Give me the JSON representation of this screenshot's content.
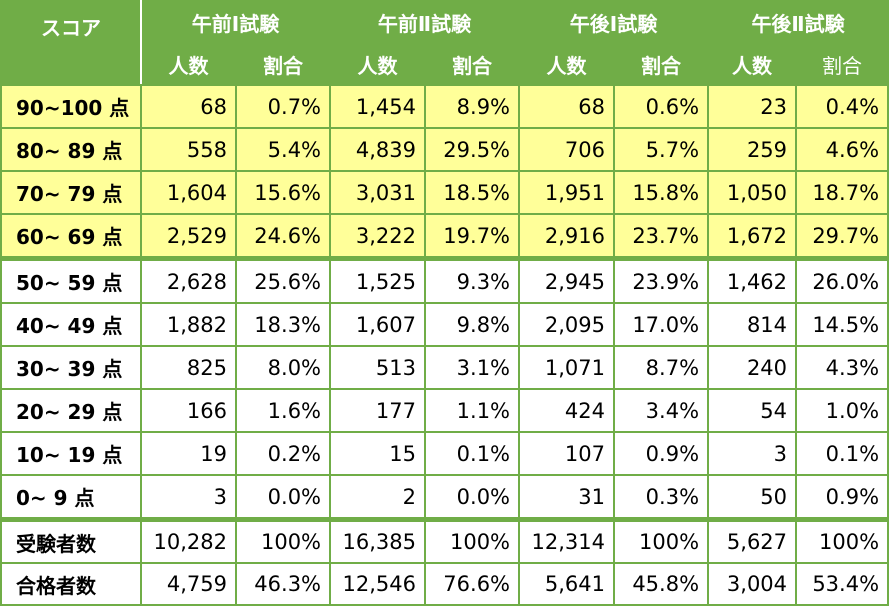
{
  "header": {
    "score_label": "スコア",
    "groups": [
      "午前Ⅰ試験",
      "午前Ⅱ試験",
      "午後Ⅰ試験",
      "午後Ⅱ試験"
    ],
    "sub": [
      "人数",
      "割合"
    ]
  },
  "rows": [
    {
      "label": "90~100 点",
      "cells": [
        "68",
        "0.7%",
        "1,454",
        "8.9%",
        "68",
        "0.6%",
        "23",
        "0.4%"
      ]
    },
    {
      "label": "80~ 89 点",
      "cells": [
        "558",
        "5.4%",
        "4,839",
        "29.5%",
        "706",
        "5.7%",
        "259",
        "4.6%"
      ]
    },
    {
      "label": "70~ 79 点",
      "cells": [
        "1,604",
        "15.6%",
        "3,031",
        "18.5%",
        "1,951",
        "15.8%",
        "1,050",
        "18.7%"
      ]
    },
    {
      "label": "60~ 69 点",
      "cells": [
        "2,529",
        "24.6%",
        "3,222",
        "19.7%",
        "2,916",
        "23.7%",
        "1,672",
        "29.7%"
      ]
    },
    {
      "label": "50~ 59 点",
      "cells": [
        "2,628",
        "25.6%",
        "1,525",
        "9.3%",
        "2,945",
        "23.9%",
        "1,462",
        "26.0%"
      ]
    },
    {
      "label": "40~ 49 点",
      "cells": [
        "1,882",
        "18.3%",
        "1,607",
        "9.8%",
        "2,095",
        "17.0%",
        "814",
        "14.5%"
      ]
    },
    {
      "label": "30~ 39 点",
      "cells": [
        "825",
        "8.0%",
        "513",
        "3.1%",
        "1,071",
        "8.7%",
        "240",
        "4.3%"
      ]
    },
    {
      "label": "20~ 29 点",
      "cells": [
        "166",
        "1.6%",
        "177",
        "1.1%",
        "424",
        "3.4%",
        "54",
        "1.0%"
      ]
    },
    {
      "label": "10~ 19 点",
      "cells": [
        "19",
        "0.2%",
        "15",
        "0.1%",
        "107",
        "0.9%",
        "3",
        "0.1%"
      ]
    },
    {
      "label": "0~  9 点",
      "cells": [
        "3",
        "0.0%",
        "2",
        "0.0%",
        "31",
        "0.3%",
        "50",
        "0.9%"
      ]
    }
  ],
  "totals": [
    {
      "label": "受験者数",
      "cells": [
        "10,282",
        "100%",
        "16,385",
        "100%",
        "12,314",
        "100%",
        "5,627",
        "100%"
      ]
    },
    {
      "label": "合格者数",
      "cells": [
        "4,759",
        "46.3%",
        "12,546",
        "76.6%",
        "5,641",
        "45.8%",
        "3,004",
        "53.4%"
      ]
    }
  ],
  "colors": {
    "header": "#70ad47",
    "pass_highlight": "#ffff99",
    "border": "#70ad47"
  }
}
